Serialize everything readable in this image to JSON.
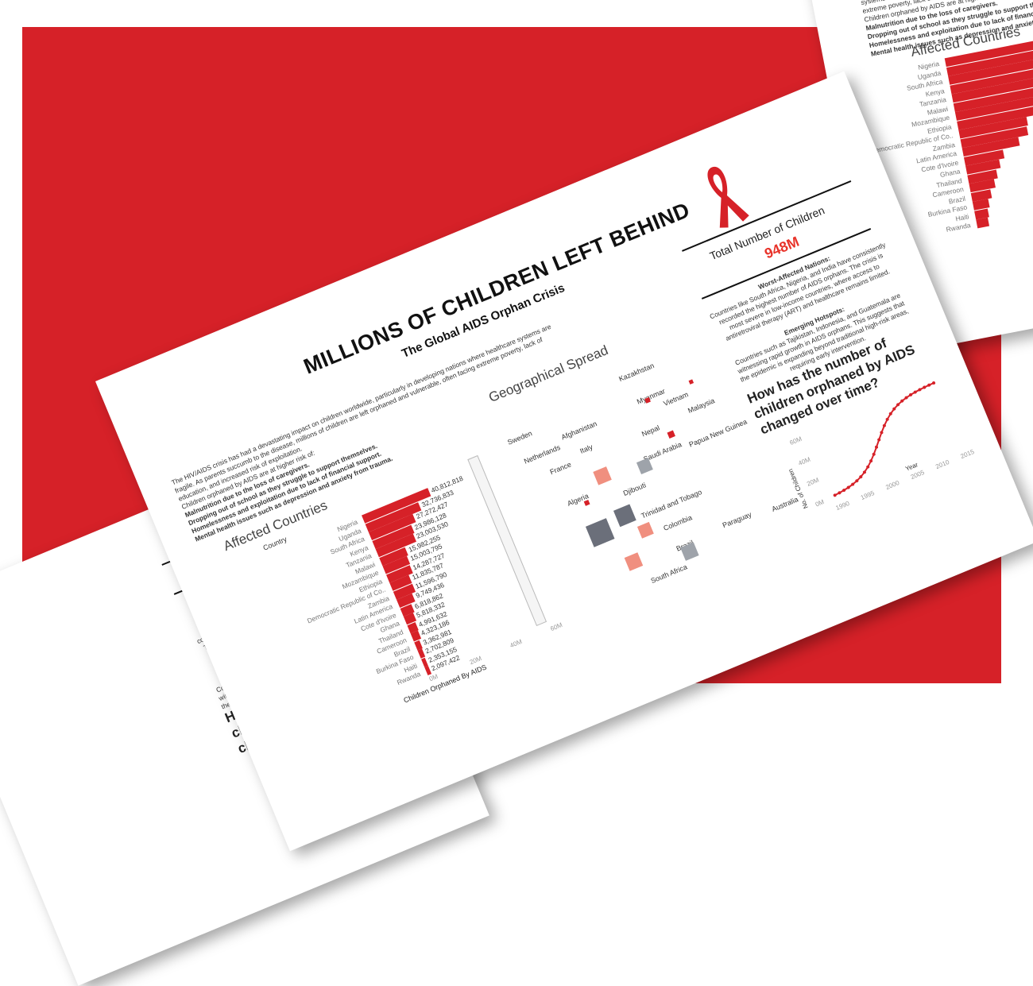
{
  "dashboard": {
    "title": "MILLIONS OF CHILDREN LEFT BEHIND",
    "subtitle": "The Global AIDS Orphan Crisis",
    "intro": "The HIV/AIDS crisis has had a devastating impact on children worldwide, particularly in developing nations where healthcare systems are fragile. As parents succumb to the disease, millions of children are left orphaned and vulnerable, often facing extreme poverty, lack of education, and increased risk of exploitation.",
    "risk_intro": "Children orphaned by AIDS are at higher risk of:",
    "risks": [
      "Malnutrition due to the loss of caregivers.",
      "Dropping out of school as they struggle to support themselves.",
      "Homelessness and exploitation due to lack of financial support.",
      "Mental health issues such as depression and anxiety from trauma."
    ],
    "total_label": "Total Number of Children",
    "total_value": "948M",
    "worst_heading": "Worst-Affected Nations:",
    "worst_text": "Countries like South Africa, Nigeria, and India have consistently recorded the highest number of AIDS orphans. The crisis is most severe in low-income countries, where access to antiretroviral therapy (ART) and healthcare remains limited.",
    "emerging_heading": "Emerging Hotspots:",
    "emerging_text": "Countries such as Tajikistan, Indonesia, and Guatemala are witnessing rapid growth in AIDS orphans. This suggests that the epidemic is expanding beyond traditional high-risk areas, requiring early intervention.",
    "question": "How has the number of children orphaned by AIDS changed over time?",
    "ribbon_icon": "aids-ribbon-icon"
  },
  "affected": {
    "heading": "Affected Countries",
    "column_header": "Country",
    "axis_label": "Children Orphaned By AIDS",
    "axis_ticks": [
      "0M",
      "20M",
      "40M",
      "60M"
    ],
    "rows": [
      {
        "country": "Nigeria",
        "value": 40812818,
        "label": "40,812,818"
      },
      {
        "country": "Uganda",
        "value": 32736833,
        "label": "32,736,833"
      },
      {
        "country": "South Africa",
        "value": 27272427,
        "label": "27,272,427"
      },
      {
        "country": "Kenya",
        "value": 23986128,
        "label": "23,986,128"
      },
      {
        "country": "Tanzania",
        "value": 23003530,
        "label": "23,003,530"
      },
      {
        "country": "Malawi",
        "value": 15982255,
        "label": "15,982,255"
      },
      {
        "country": "Mozambique",
        "value": 15003795,
        "label": "15,003,795"
      },
      {
        "country": "Ethiopia",
        "value": 14287727,
        "label": "14,287,727"
      },
      {
        "country": "Democratic Republic of Co..",
        "value": 11835787,
        "label": "11,835,787"
      },
      {
        "country": "Zambia",
        "value": 11596790,
        "label": "11,596,790"
      },
      {
        "country": "Latin America",
        "value": 9749436,
        "label": "9,749,436"
      },
      {
        "country": "Cote d'Ivoire",
        "value": 6818862,
        "label": "6,818,862"
      },
      {
        "country": "Ghana",
        "value": 5818332,
        "label": "5,818,332"
      },
      {
        "country": "Thailand",
        "value": 4991632,
        "label": "4,991,632"
      },
      {
        "country": "Cameroon",
        "value": 4323186,
        "label": "4,323,186"
      },
      {
        "country": "Brazil",
        "value": 3362981,
        "label": "3,362,981"
      },
      {
        "country": "Burkina Faso",
        "value": 2702809,
        "label": "2,702,809"
      },
      {
        "country": "Haiti",
        "value": 2353155,
        "label": "2,353,155"
      },
      {
        "country": "Rwanda",
        "value": 2097422,
        "label": "2,097,422"
      }
    ]
  },
  "geo": {
    "heading": "Geographical Spread",
    "labels": [
      "Sweden",
      "Netherlands",
      "Afghanistan",
      "Kazakhstan",
      "France",
      "Italy",
      "Myanmar",
      "Nepal",
      "Vietnam",
      "Saudi Arabia",
      "Malaysia",
      "Papua New Guinea",
      "Algeria",
      "Djibouti",
      "Trinidad and Tobago",
      "Colombia",
      "Brazil",
      "Paraguay",
      "South Africa",
      "Australia"
    ]
  },
  "trend": {
    "y_label": "No. of Children",
    "y_ticks": [
      "0M",
      "20M",
      "40M",
      "60M"
    ],
    "x_label": "Year",
    "x_ticks": [
      "1990",
      "1995",
      "2000",
      "2005",
      "2010",
      "2015"
    ]
  },
  "colors": {
    "brand_red": "#d62128",
    "accent": "#e8332a",
    "grey": "#6b6f7a"
  }
}
